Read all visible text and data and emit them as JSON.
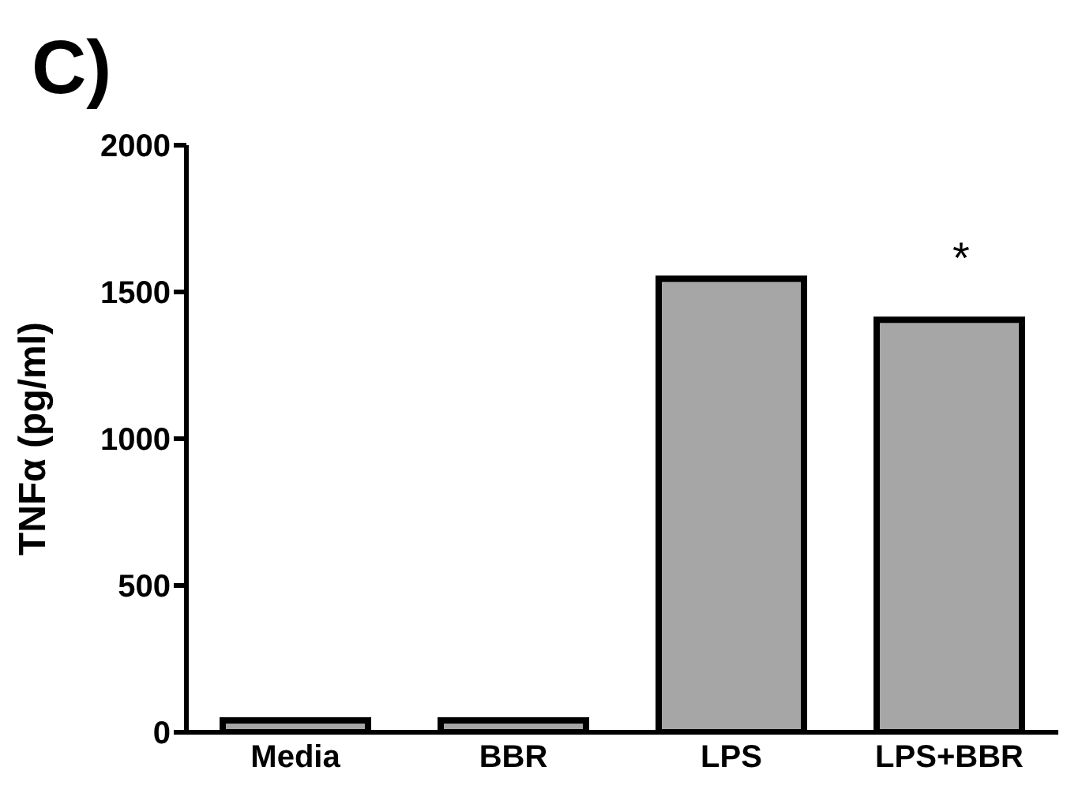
{
  "chart_data": {
    "type": "bar",
    "title": "C)",
    "ylabel": "TNFα (pg/ml)",
    "categories": [
      "Media",
      "BBR",
      "LPS",
      "LPS+BBR"
    ],
    "values": [
      40,
      40,
      1545,
      1405
    ],
    "color": "#a6a6a6",
    "ylim": [
      0,
      2000
    ],
    "yticks": [
      0,
      500,
      1000,
      1500,
      2000
    ],
    "grid": false,
    "legend": false,
    "annotations": [
      "*"
    ]
  }
}
